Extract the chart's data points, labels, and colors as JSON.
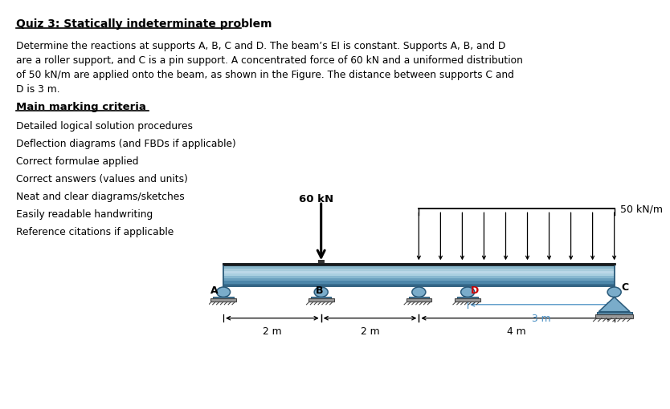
{
  "title": "Quiz 3: Statically indeterminate problem",
  "para_lines": [
    "Determine the reactions at supports A, B, C and D. The beam’s EI is constant. Supports A, B, and D",
    "are a roller support, and C is a pin support. A concentrated force of 60 kN and a uniformed distribution",
    "of 50 kN/m are applied onto the beam, as shown in the Figure. The distance between supports C and",
    "D is 3 m."
  ],
  "criteria_title": "Main marking criteria",
  "criteria": [
    "Detailed logical solution procedures",
    "Deflection diagrams (and FBDs if applicable)",
    "Correct formulae applied",
    "Correct answers (values and units)",
    "Neat and clear diagrams/sketches",
    "Easily readable handwriting",
    "Reference citations if applicable"
  ],
  "force_label": "60 kN",
  "dist_label": "50 kN/m",
  "dim1": "2 m",
  "dim2": "2 m",
  "dim3": "4 m",
  "dim4": "3 m",
  "bg_color": "#ffffff",
  "text_color": "#000000",
  "D_label_color": "#cc0000",
  "dim_arrow_color": "#4a90c4",
  "beam_dark_stripe": "#1e2f3c",
  "beam_grad_colors": [
    "#3a6e8f",
    "#4d87aa",
    "#6aa0be",
    "#88b8d0",
    "#aacfe0",
    "#bbd8e8",
    "#a8ccdc",
    "#8ab8cc",
    "#6aa0bc"
  ],
  "beam_edge_color": "#2a5a7a",
  "roller_fill": "#7aacca",
  "roller_edge": "#2a5a7a",
  "ground_fill": "#999999",
  "ground_edge": "#444444",
  "hatch_color": "#444444"
}
